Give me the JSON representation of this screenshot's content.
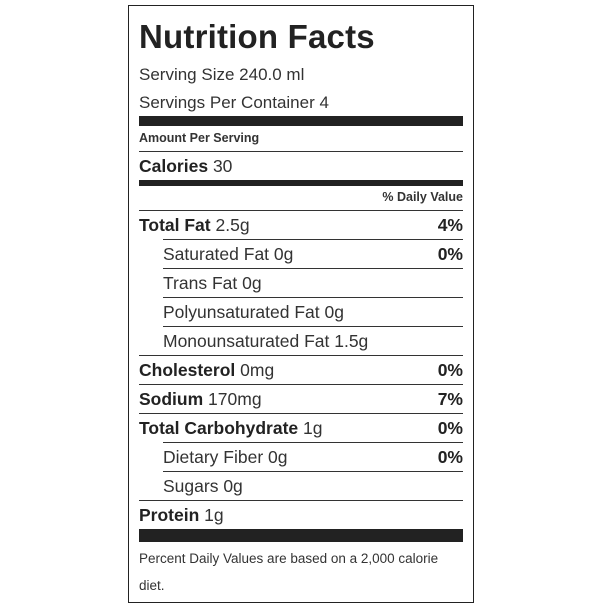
{
  "label": {
    "title": "Nutrition Facts",
    "serving_size": "Serving Size 240.0 ml",
    "servings_per_container": "Servings Per Container 4",
    "amount_per_serving": "Amount Per Serving",
    "calories_label": "Calories",
    "calories_value": "30",
    "daily_value_header": "% Daily Value",
    "nutrients": [
      {
        "name": "Total Fat",
        "amount": "2.5g",
        "dv": "4%"
      },
      {
        "name": "Saturated Fat",
        "amount": "0g",
        "dv": "0%"
      },
      {
        "name": "Trans Fat",
        "amount": "0g",
        "dv": ""
      },
      {
        "name": "Polyunsaturated Fat",
        "amount": "0g",
        "dv": ""
      },
      {
        "name": "Monounsaturated Fat",
        "amount": "1.5g",
        "dv": ""
      },
      {
        "name": "Cholesterol",
        "amount": "0mg",
        "dv": "0%"
      },
      {
        "name": "Sodium",
        "amount": "170mg",
        "dv": "7%"
      },
      {
        "name": "Total Carbohydrate",
        "amount": "1g",
        "dv": "0%"
      },
      {
        "name": "Dietary Fiber",
        "amount": "0g",
        "dv": "0%"
      },
      {
        "name": "Sugars",
        "amount": "0g",
        "dv": ""
      },
      {
        "name": "Protein",
        "amount": "1g",
        "dv": ""
      }
    ],
    "footnote": "Percent Daily Values are based on a 2,000 calorie diet."
  },
  "colors": {
    "ink": "#222222",
    "text": "#333333",
    "background": "#ffffff"
  }
}
